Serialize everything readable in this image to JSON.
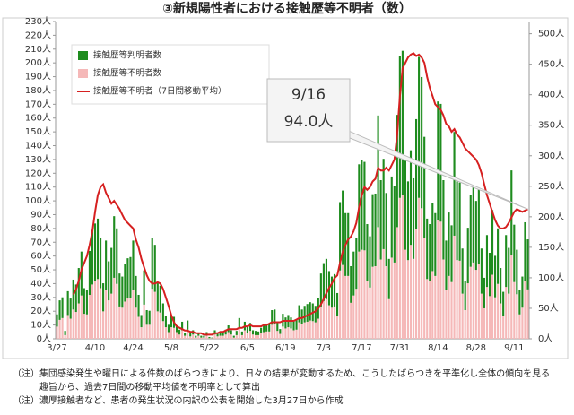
{
  "chart_data": {
    "type": "bar",
    "stacked": true,
    "title": "③新規陽性者における接触歴等不明者（数）",
    "categories": [
      "3/27",
      null,
      null,
      null,
      null,
      null,
      null,
      null,
      null,
      null,
      null,
      null,
      null,
      null,
      "4/10",
      null,
      null,
      null,
      null,
      null,
      null,
      null,
      null,
      null,
      null,
      null,
      null,
      null,
      "4/24",
      null,
      null,
      null,
      null,
      null,
      null,
      null,
      null,
      null,
      null,
      null,
      null,
      null,
      "5/8",
      null,
      null,
      null,
      null,
      null,
      null,
      null,
      null,
      null,
      null,
      null,
      null,
      null,
      "5/22",
      null,
      null,
      null,
      null,
      null,
      null,
      null,
      null,
      null,
      null,
      null,
      null,
      null,
      "6/5",
      null,
      null,
      null,
      null,
      null,
      null,
      null,
      null,
      null,
      null,
      null,
      null,
      null,
      "6/19",
      null,
      null,
      null,
      null,
      null,
      null,
      null,
      null,
      null,
      null,
      null,
      null,
      null,
      "7/3",
      null,
      null,
      null,
      null,
      null,
      null,
      null,
      null,
      null,
      null,
      null,
      null,
      null,
      "7/17",
      null,
      null,
      null,
      null,
      null,
      null,
      null,
      null,
      null,
      null,
      null,
      null,
      null,
      "7/31",
      null,
      null,
      null,
      null,
      null,
      null,
      null,
      null,
      null,
      null,
      null,
      null,
      null,
      "8/14",
      null,
      null,
      null,
      null,
      null,
      null,
      null,
      null,
      null,
      null,
      null,
      null,
      null,
      "8/28",
      null,
      null,
      null,
      null,
      null,
      null,
      null,
      null,
      null,
      null,
      null,
      null,
      null,
      "9/11",
      null,
      null,
      null,
      null,
      null
    ],
    "series": [
      {
        "name": "接触歴等判明者数",
        "color": "#1e8c1e",
        "axis": "y2",
        "values": [
          20,
          32,
          34,
          7,
          39,
          33,
          49,
          45,
          58,
          72,
          42,
          40,
          72,
          89,
          95,
          99,
          83,
          46,
          81,
          64,
          75,
          101,
          91,
          54,
          51,
          62,
          66,
          67,
          81,
          52,
          36,
          20,
          56,
          24,
          23,
          83,
          77,
          46,
          44,
          29,
          19,
          12,
          20,
          18,
          11,
          8,
          14,
          5,
          15,
          5,
          7,
          3,
          5,
          3,
          3,
          6,
          2,
          1,
          7,
          4,
          5,
          6,
          8,
          11,
          7,
          3,
          7,
          17,
          6,
          14,
          10,
          13,
          7,
          7,
          6,
          9,
          11,
          13,
          12,
          24,
          24,
          14,
          8,
          21,
          18,
          20,
          18,
          15,
          16,
          28,
          24,
          27,
          29,
          30,
          29,
          27,
          34,
          54,
          62,
          66,
          56,
          51,
          53,
          38,
          112,
          122,
          103,
          103,
          60,
          72,
          83,
          143,
          147,
          145,
          94,
          84,
          119,
          119,
          183,
          130,
          148,
          120,
          66,
          133,
          125,
          184,
          232,
          236,
          146,
          129,
          155,
          132,
          180,
          231,
          215,
          166,
          99,
          94,
          111,
          103,
          195,
          193,
          130,
          81,
          104,
          93,
          170,
          129,
          128,
          74,
          48,
          91,
          118,
          125,
          113,
          124,
          74,
          50,
          85,
          71,
          106,
          68,
          91,
          58,
          39,
          85,
          75,
          138,
          94,
          73,
          40,
          51,
          96,
          82
        ]
      },
      {
        "name": "接触歴等不明者数",
        "color": "#f5b8b8",
        "axis": "y2",
        "values": [
          20,
          31,
          34,
          6,
          39,
          33,
          48,
          44,
          58,
          71,
          41,
          40,
          72,
          89,
          94,
          98,
          83,
          45,
          80,
          63,
          74,
          100,
          90,
          53,
          51,
          61,
          66,
          67,
          80,
          51,
          36,
          19,
          56,
          23,
          23,
          82,
          77,
          45,
          43,
          29,
          19,
          11,
          19,
          18,
          11,
          7,
          14,
          5,
          15,
          4,
          7,
          2,
          5,
          2,
          2,
          5,
          1,
          1,
          7,
          4,
          5,
          5,
          7,
          11,
          7,
          2,
          6,
          17,
          6,
          14,
          10,
          13,
          7,
          6,
          6,
          9,
          11,
          12,
          12,
          23,
          24,
          13,
          8,
          20,
          17,
          19,
          17,
          14,
          15,
          27,
          24,
          27,
          28,
          30,
          29,
          27,
          33,
          53,
          62,
          65,
          55,
          51,
          53,
          37,
          112,
          121,
          103,
          103,
          59,
          71,
          82,
          143,
          146,
          145,
          94,
          84,
          118,
          119,
          183,
          130,
          147,
          119,
          65,
          133,
          125,
          183,
          231,
          236,
          146,
          129,
          154,
          131,
          180,
          231,
          214,
          165,
          98,
          94,
          111,
          103,
          194,
          192,
          130,
          80,
          103,
          93,
          169,
          129,
          128,
          74,
          47,
          91,
          118,
          125,
          113,
          123,
          74,
          50,
          85,
          70,
          105,
          68,
          90,
          58,
          38,
          85,
          74,
          138,
          93,
          73,
          40,
          51,
          95,
          81
        ]
      },
      {
        "name": "接触歴等不明者（7日間移動平均）",
        "type": "line",
        "color": "#d62020",
        "values": [
          null,
          null,
          null,
          null,
          null,
          null,
          32,
          36,
          42,
          50,
          55,
          60,
          68,
          78,
          92,
          104,
          110,
          112,
          106,
          102,
          98,
          100,
          97,
          94,
          90,
          86,
          84,
          82,
          80,
          72,
          66,
          58,
          52,
          46,
          42,
          40,
          40,
          41,
          40,
          36,
          30,
          24,
          17,
          12,
          9,
          8,
          7,
          6,
          6,
          5,
          5,
          4,
          4,
          4,
          3,
          3,
          3,
          3,
          4,
          4,
          5,
          5,
          6,
          7,
          7,
          7,
          7,
          8,
          8,
          9,
          9,
          10,
          9,
          9,
          9,
          9,
          10,
          10,
          11,
          12,
          12,
          12,
          12,
          13,
          13,
          13,
          13,
          13,
          14,
          15,
          15,
          16,
          17,
          18,
          19,
          20,
          22,
          25,
          29,
          33,
          37,
          40,
          44,
          46,
          55,
          63,
          68,
          72,
          74,
          78,
          84,
          95,
          104,
          110,
          108,
          110,
          114,
          116,
          124,
          122,
          122,
          124,
          122,
          126,
          130,
          148,
          176,
          196,
          200,
          204,
          206,
          207,
          205,
          206,
          204,
          200,
          190,
          182,
          176,
          170,
          168,
          166,
          162,
          156,
          154,
          150,
          152,
          148,
          146,
          142,
          138,
          136,
          134,
          132,
          130,
          126,
          120,
          112,
          104,
          98,
          92,
          86,
          82,
          80,
          80,
          81,
          84,
          88,
          92,
          94,
          93,
          92,
          93,
          94
        ]
      }
    ],
    "ylim": [
      0,
      230
    ],
    "yticks": [
      {
        "value": 0,
        "label": "0人"
      },
      {
        "value": 10,
        "label": "10人"
      },
      {
        "value": 20,
        "label": "20人"
      },
      {
        "value": 30,
        "label": "30人"
      },
      {
        "value": 40,
        "label": "40人"
      },
      {
        "value": 50,
        "label": "50人"
      },
      {
        "value": 60,
        "label": "60人"
      },
      {
        "value": 70,
        "label": "70人"
      },
      {
        "value": 80,
        "label": "80人"
      },
      {
        "value": 90,
        "label": "90人"
      },
      {
        "value": 100,
        "label": "100人"
      },
      {
        "value": 110,
        "label": "110人"
      },
      {
        "value": 120,
        "label": "120人"
      },
      {
        "value": 130,
        "label": "130人"
      },
      {
        "value": 140,
        "label": "140人"
      },
      {
        "value": 150,
        "label": "150人"
      },
      {
        "value": 160,
        "label": "160人"
      },
      {
        "value": 170,
        "label": "170人"
      },
      {
        "value": 180,
        "label": "180人"
      },
      {
        "value": 190,
        "label": "190人"
      },
      {
        "value": 200,
        "label": "200人"
      },
      {
        "value": 210,
        "label": "210人"
      },
      {
        "value": 220,
        "label": "220人"
      },
      {
        "value": 230,
        "label": "230人"
      }
    ],
    "y2lim": [
      0,
      520
    ],
    "y2ticks": [
      {
        "value": 0,
        "label": "0人"
      },
      {
        "value": 50,
        "label": "50人"
      },
      {
        "value": 100,
        "label": "100人"
      },
      {
        "value": 150,
        "label": "150人"
      },
      {
        "value": 200,
        "label": "200人"
      },
      {
        "value": 250,
        "label": "250人"
      },
      {
        "value": 300,
        "label": "300人"
      },
      {
        "value": 350,
        "label": "350人"
      },
      {
        "value": 400,
        "label": "400人"
      },
      {
        "value": 450,
        "label": "450人"
      },
      {
        "value": 500,
        "label": "500人"
      }
    ],
    "annotation": {
      "date": "9/16",
      "text": "94.0人"
    },
    "notes": [
      "（注）集団感染発生や曜日による件数のばらつきにより、日々の結果が変動するため、こうしたばらつきを平準化し全体の傾向を見る趣旨から、過去7日間の移動平均値を不明率として算出",
      "（注）濃厚接触者など、患者の発生状況の内訳の公表を開始した3月27日から作成"
    ]
  }
}
